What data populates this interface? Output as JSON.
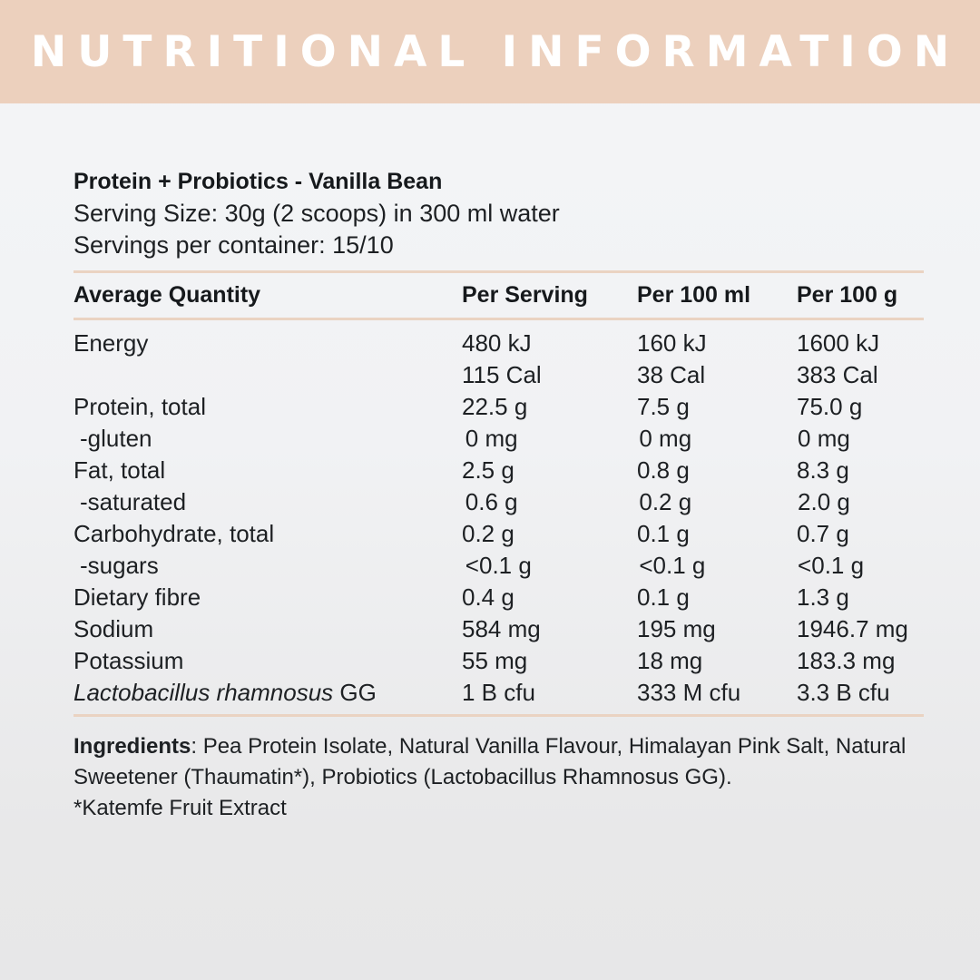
{
  "header": {
    "title": "NUTRITIONAL INFORMATION"
  },
  "product": {
    "name": "Protein + Probiotics - Vanilla Bean",
    "serving_size": "Serving Size: 30g (2 scoops) in 300 ml water",
    "servings_per_container": "Servings per container: 15/10"
  },
  "table": {
    "headers": [
      "Average Quantity",
      "Per Serving",
      "Per 100 ml",
      "Per 100 g"
    ],
    "rows": [
      {
        "label": "Energy",
        "per_serving": "480 kJ",
        "per_100ml": "160 kJ",
        "per_100g": "1600 kJ"
      },
      {
        "label": "",
        "per_serving": "115 Cal",
        "per_100ml": "38 Cal",
        "per_100g": "383 Cal"
      },
      {
        "label": "Protein, total",
        "per_serving": "22.5 g",
        "per_100ml": "7.5 g",
        "per_100g": "75.0 g"
      },
      {
        "label": "-gluten",
        "per_serving": "0 mg",
        "per_100ml": "0 mg",
        "per_100g": "0 mg"
      },
      {
        "label": "Fat, total",
        "per_serving": "2.5 g",
        "per_100ml": "0.8 g",
        "per_100g": "8.3 g"
      },
      {
        "label": "-saturated",
        "per_serving": "0.6 g",
        "per_100ml": "0.2 g",
        "per_100g": "2.0 g"
      },
      {
        "label": "Carbohydrate, total",
        "per_serving": "0.2 g",
        "per_100ml": "0.1 g",
        "per_100g": "0.7 g"
      },
      {
        "label": "-sugars",
        "per_serving": "<0.1 g",
        "per_100ml": "<0.1 g",
        "per_100g": "<0.1 g"
      },
      {
        "label": "Dietary fibre",
        "per_serving": "0.4 g",
        "per_100ml": "0.1 g",
        "per_100g": "1.3 g"
      },
      {
        "label": "Sodium",
        "per_serving": "584 mg",
        "per_100ml": "195 mg",
        "per_100g": "1946.7 mg"
      },
      {
        "label": "Potassium",
        "per_serving": "55 mg",
        "per_100ml": "18 mg",
        "per_100g": "183.3 mg"
      },
      {
        "label_italic": "Lactobacillus rhamnosus",
        "label_suffix": " GG",
        "per_serving": "1 B cfu",
        "per_100ml": "333 M cfu",
        "per_100g": "3.3 B cfu"
      }
    ]
  },
  "ingredients": {
    "label": "Ingredients",
    "text": ": Pea Protein Isolate, Natural Vanilla Flavour, Himalayan Pink Salt, Natural Sweetener (Thaumatin*), Probiotics (Lactobacillus Rhamnosus GG).",
    "footnote": "*Katemfe Fruit Extract"
  },
  "colors": {
    "header_bg": "#ecd0bd",
    "rule": "#ead3c2",
    "text": "#16191c"
  }
}
